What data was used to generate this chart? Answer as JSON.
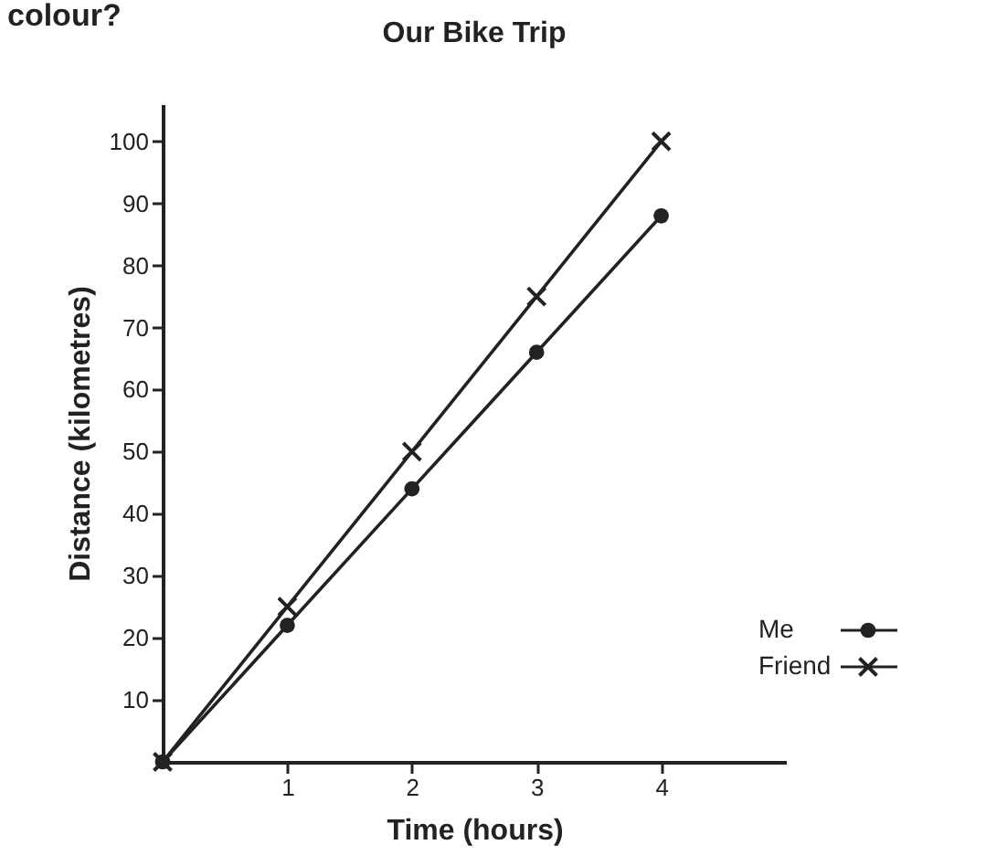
{
  "chart_data": {
    "type": "line",
    "title": "Our Bike Trip",
    "xlabel": "Time (hours)",
    "ylabel": "Distance (kilometres)",
    "annotations": [
      "colour?"
    ],
    "x": [
      0,
      1,
      2,
      3,
      4
    ],
    "series": [
      {
        "name": "Me",
        "color": "#222222",
        "marker": "circle",
        "values": [
          0,
          22,
          44,
          66,
          88
        ]
      },
      {
        "name": "Friend",
        "color": "#222222",
        "marker": "cross",
        "values": [
          0,
          25,
          50,
          75,
          100
        ]
      }
    ],
    "xlim": [
      0,
      5
    ],
    "ylim": [
      0,
      106
    ],
    "xticks": [
      1,
      2,
      3,
      4
    ],
    "yticks": [
      10,
      20,
      30,
      40,
      50,
      60,
      70,
      80,
      90,
      100
    ],
    "grid": false,
    "legend": "bottom right",
    "line_style": "solid"
  }
}
